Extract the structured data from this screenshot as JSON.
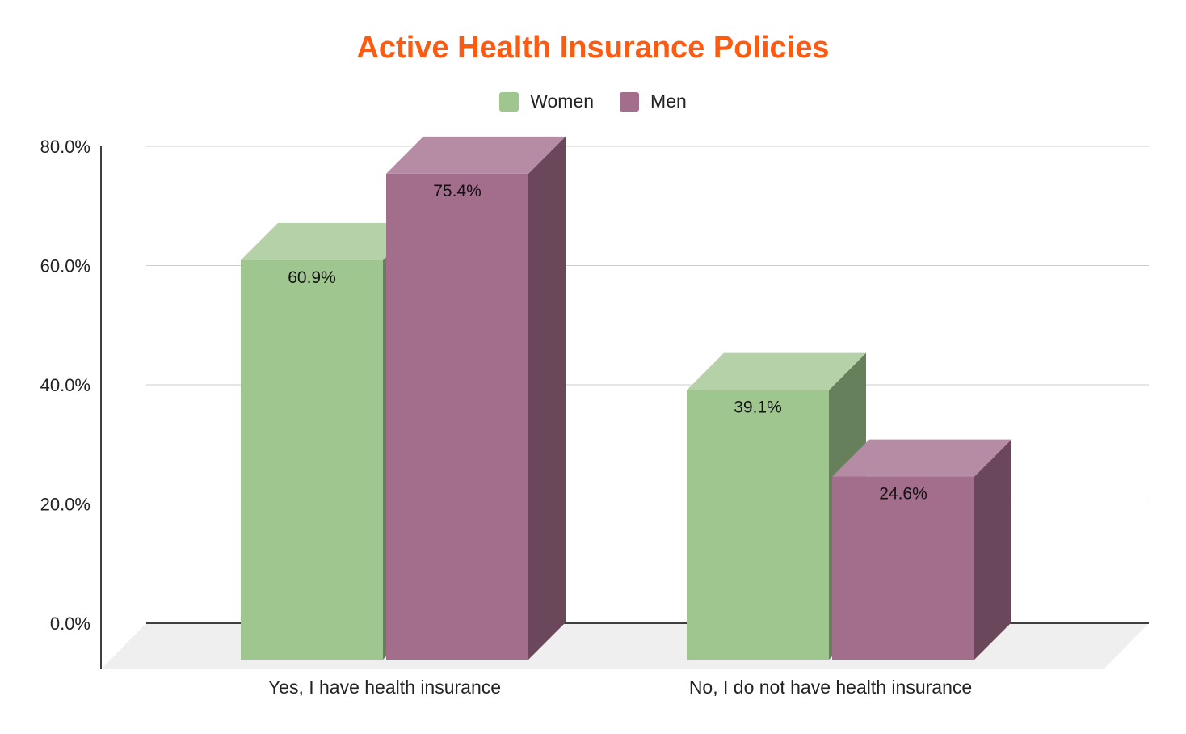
{
  "chart_data": {
    "type": "bar",
    "title": "Active Health Insurance Policies",
    "categories": [
      "Yes, I have health insurance",
      "No, I do not have health insurance"
    ],
    "series": [
      {
        "name": "Women",
        "values": [
          60.9,
          39.1
        ],
        "labels": [
          "60.9%",
          "39.1%"
        ],
        "color": "#a0c690",
        "top_color": "#b4d1a8",
        "side_color": "#67805c"
      },
      {
        "name": "Men",
        "values": [
          75.4,
          24.6
        ],
        "labels": [
          "75.4%",
          "24.6%"
        ],
        "color": "#a36e8c",
        "top_color": "#b68ba4",
        "side_color": "#6a475b"
      }
    ],
    "ylim": [
      0,
      80
    ],
    "y_ticks": [
      "0.0%",
      "20.0%",
      "40.0%",
      "60.0%",
      "80.0%"
    ],
    "y_tick_values": [
      0,
      20,
      40,
      60,
      80
    ],
    "grid": true,
    "legend_position": "top-center",
    "style": "3d"
  },
  "colors": {
    "title": "#ff5a0f",
    "grid": "#cccccc",
    "axis": "#000000",
    "floor": "#efefef"
  }
}
